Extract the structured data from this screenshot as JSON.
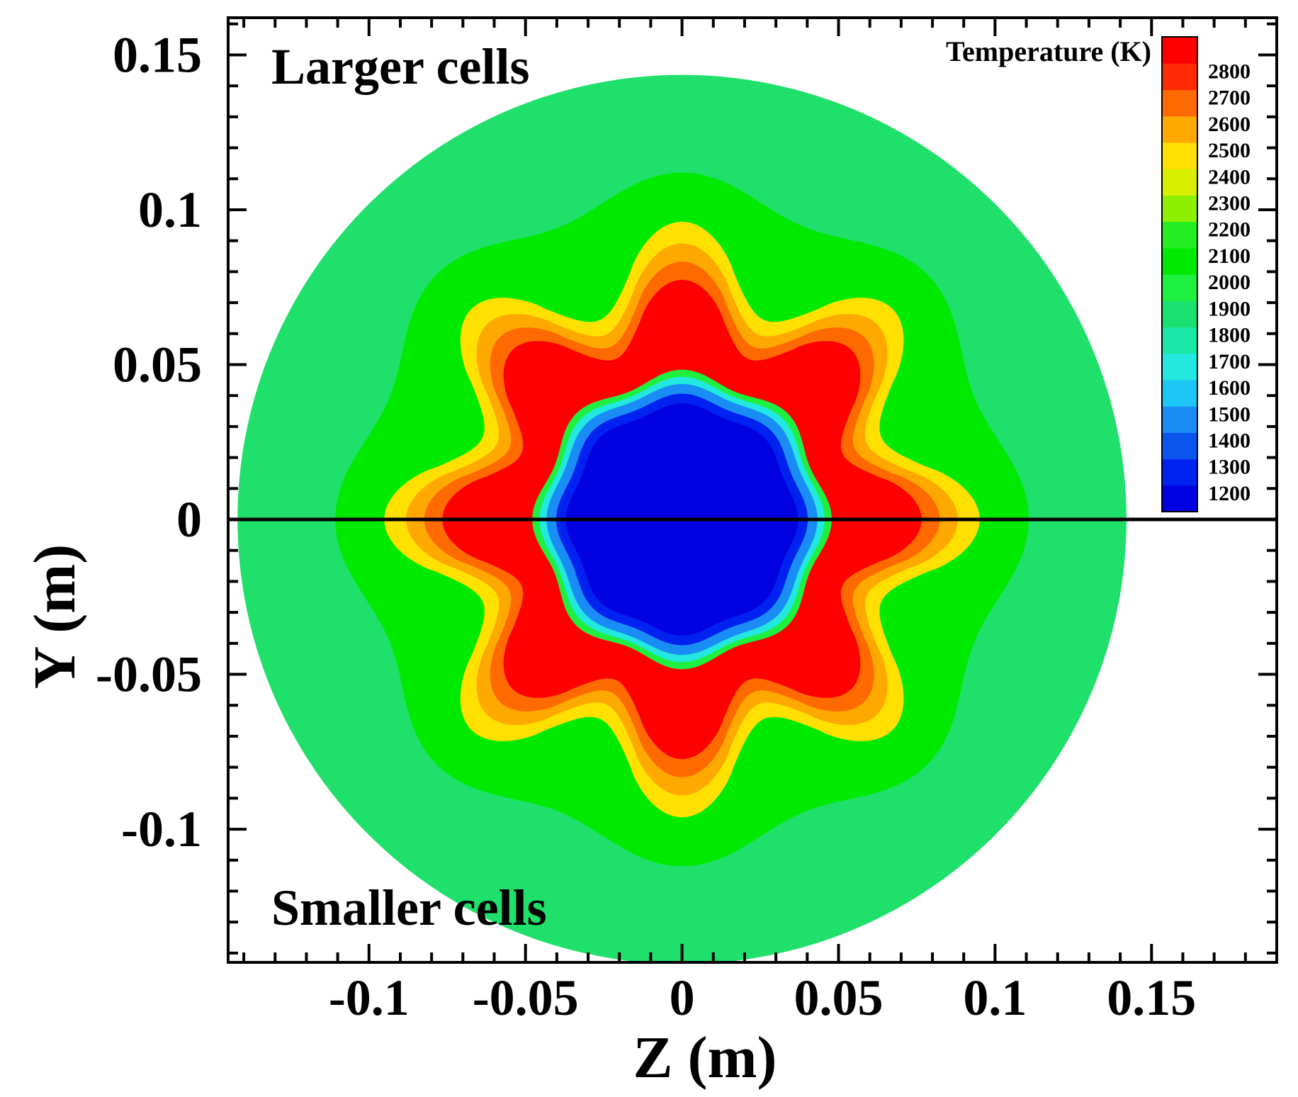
{
  "chart_data": {
    "type": "heatmap",
    "subtype": "filled-contour",
    "xlabel": "Z (m)",
    "ylabel": "Y (m)",
    "xlim": [
      -0.145,
      0.19
    ],
    "ylim": [
      -0.143,
      0.162
    ],
    "x_ticks": [
      -0.1,
      -0.05,
      0,
      0.05,
      0.1,
      0.15
    ],
    "x_tick_labels": [
      "-0.1",
      "-0.05",
      "0",
      "0.05",
      "0.1",
      "0.15"
    ],
    "y_ticks": [
      -0.1,
      -0.05,
      0,
      0.05,
      0.1,
      0.15
    ],
    "y_tick_labels": [
      "-0.1",
      "-0.05",
      "0",
      "0.05",
      "0.1",
      "0.15"
    ],
    "annotations": [
      {
        "text": "Larger cells",
        "region": "upper half"
      },
      {
        "text": "Smaller cells",
        "region": "lower half"
      }
    ],
    "colorbar": {
      "title": "Temperature (K)",
      "levels": [
        1200,
        1300,
        1400,
        1500,
        1600,
        1700,
        1800,
        1900,
        2000,
        2100,
        2200,
        2300,
        2400,
        2500,
        2600,
        2700,
        2800
      ],
      "colors": [
        "#0000e0",
        "#0022f0",
        "#0b55ee",
        "#1a8cf5",
        "#1ec6f5",
        "#22e8e0",
        "#19e8a8",
        "#1ae070",
        "#1ef040",
        "#00ea00",
        "#22ee22",
        "#8cf000",
        "#d8f000",
        "#ffe000",
        "#ffa800",
        "#ff6a00",
        "#ff2a00",
        "#ff0000"
      ]
    },
    "domain": {
      "shape": "circle",
      "center": [
        0,
        0
      ],
      "radius": 0.142
    },
    "field": {
      "description": "8-lobed star flame front around a cold core",
      "core_temperature_K": 1200,
      "peak_temperature_K": 2800,
      "outer_temperature_K": 1900,
      "lobes": 8
    },
    "divider_line_y": 0
  }
}
